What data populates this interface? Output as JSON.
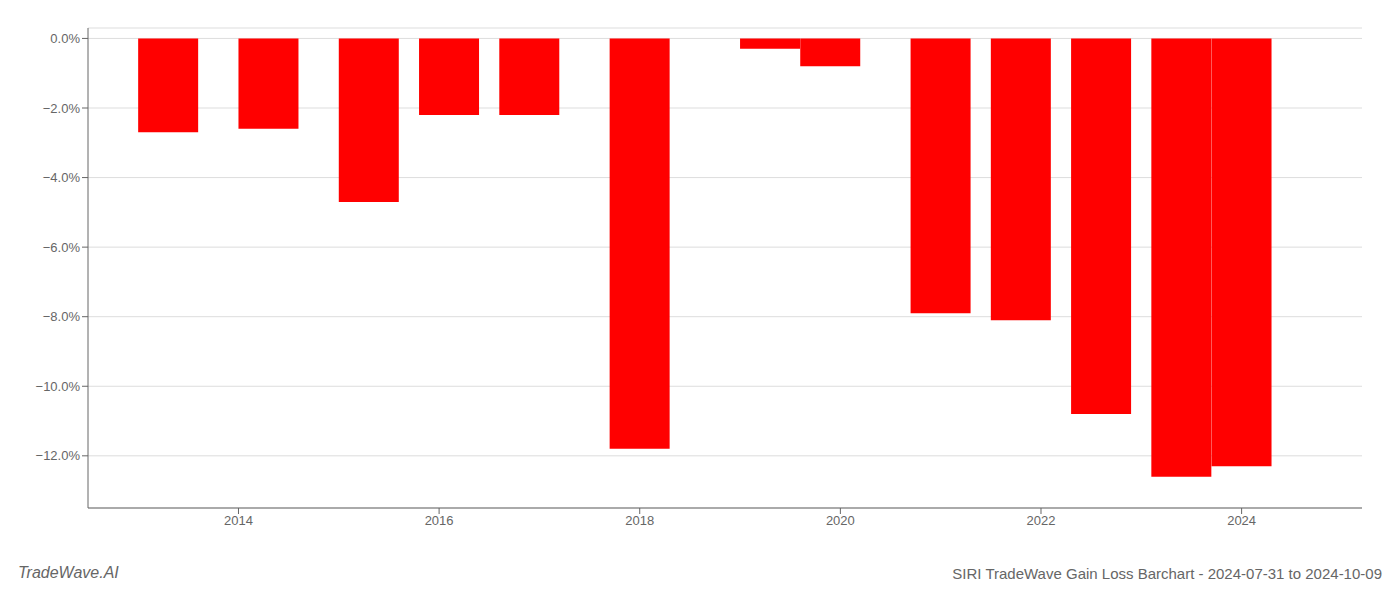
{
  "chart_data": {
    "type": "bar",
    "title": "SIRI TradeWave Gain Loss Barchart - 2024-07-31 to 2024-10-09",
    "annotations": [
      "TradeWave.AI"
    ],
    "x": [
      2013.3,
      2014.3,
      2015.3,
      2016.1,
      2016.9,
      2018.0,
      2019.3,
      2019.9,
      2021.0,
      2021.8,
      2022.6,
      2023.4,
      2024.0
    ],
    "values": [
      -2.7,
      -2.6,
      -4.7,
      -2.2,
      -2.2,
      -11.8,
      -0.3,
      -0.8,
      -7.9,
      -8.1,
      -10.8,
      -12.6,
      -12.3
    ],
    "color": "#ff0000",
    "xlim": [
      2012.5,
      2025.2
    ],
    "xticks": [
      2014,
      2016,
      2018,
      2020,
      2022,
      2024
    ],
    "ylim": [
      -13.5,
      0.3
    ],
    "yticks": [
      {
        "value": 0,
        "label": "0.0%"
      },
      {
        "value": -2,
        "label": "−2.0%"
      },
      {
        "value": -4,
        "label": "−4.0%"
      },
      {
        "value": -6,
        "label": "−6.0%"
      },
      {
        "value": -8,
        "label": "−8.0%"
      },
      {
        "value": -10,
        "label": "−10.0%"
      },
      {
        "value": -12,
        "label": "−12.0%"
      }
    ],
    "grid": true
  }
}
